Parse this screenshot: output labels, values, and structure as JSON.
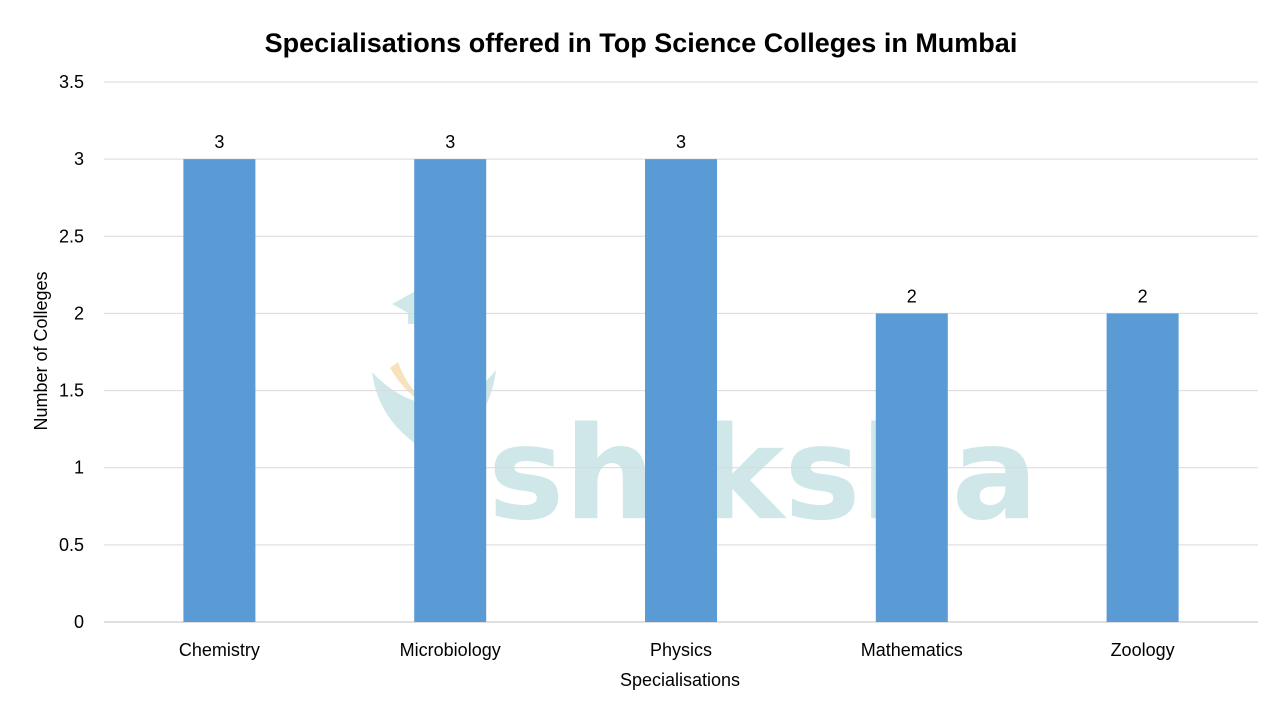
{
  "colors": {
    "bar": "#5b9bd5",
    "gridline": "#d9d9d9",
    "axis": "#bfbfbf",
    "watermark": "#bfe0e2",
    "watermark_accent": "#f6d9a8"
  },
  "watermark": {
    "text": "shiksha",
    "icon": "graduation-cap-logo-icon"
  },
  "chart_data": {
    "type": "bar",
    "title": "Specialisations offered in Top Science Colleges in Mumbai",
    "xlabel": "Specialisations",
    "ylabel": "Number of Colleges",
    "categories": [
      "Chemistry",
      "Microbiology",
      "Physics",
      "Mathematics",
      "Zoology"
    ],
    "values": [
      3,
      3,
      3,
      2,
      2
    ],
    "data_labels": [
      "3",
      "3",
      "3",
      "2",
      "2"
    ],
    "ylim": [
      0,
      3.5
    ],
    "yticks": [
      0,
      0.5,
      1,
      1.5,
      2,
      2.5,
      3,
      3.5
    ],
    "ytick_labels": [
      "0",
      "0.5",
      "1",
      "1.5",
      "2",
      "2.5",
      "3",
      "3.5"
    ],
    "grid": true,
    "legend": "none"
  }
}
